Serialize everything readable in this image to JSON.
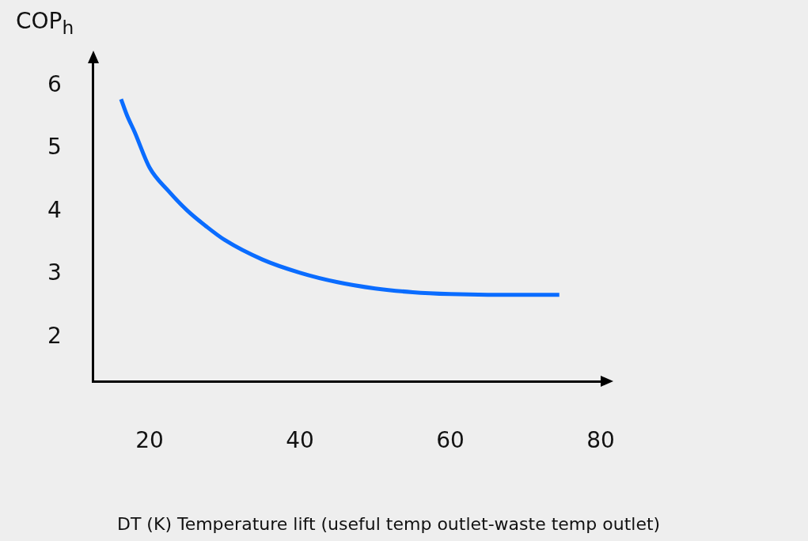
{
  "chart_data": {
    "type": "line",
    "xlabel": "DT (K) Temperature lift (useful temp outlet-waste temp outlet)",
    "ylabel": "COP$_{h}$",
    "xlim": [
      12.5,
      80
    ],
    "ylim": [
      1.3,
      6.36
    ],
    "xticks": [
      20,
      40,
      60,
      80
    ],
    "yticks": [
      2,
      3,
      4,
      5,
      6
    ],
    "marker": "none",
    "line_style": "solid",
    "series": [
      {
        "color": "#0a6cff",
        "x": [
          16.2,
          17,
          18,
          20,
          22.5,
          25,
          27.5,
          30,
          35,
          40,
          45,
          50,
          55,
          60,
          65,
          70,
          74.5
        ],
        "values": [
          5.79,
          5.53,
          5.27,
          4.7,
          4.33,
          4.02,
          3.77,
          3.55,
          3.24,
          3.03,
          2.88,
          2.78,
          2.72,
          2.69,
          2.68,
          2.68,
          2.68
        ]
      }
    ]
  }
}
